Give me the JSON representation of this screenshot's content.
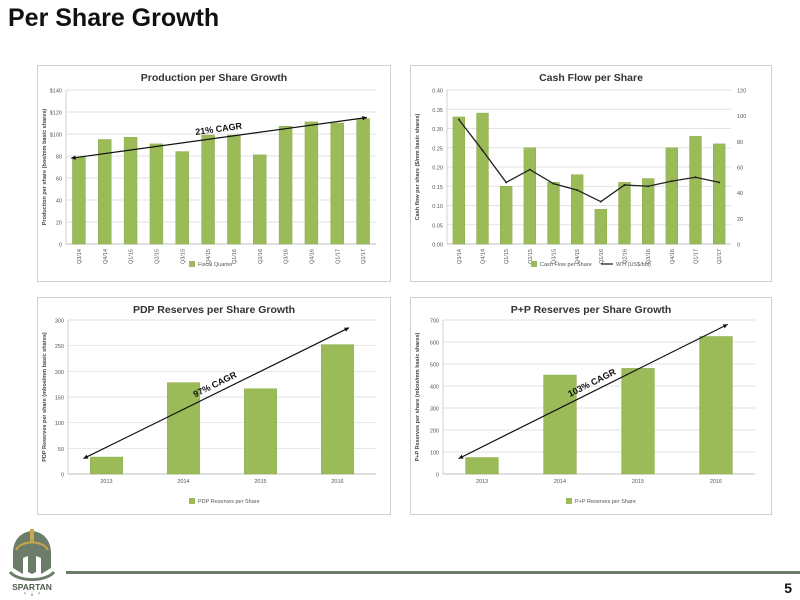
{
  "page": {
    "title": "Per Share Growth",
    "page_number": "5",
    "logo_text": "SPARTAN"
  },
  "colors": {
    "bar": "#9bbb59",
    "bar_stroke": "#8aab4b",
    "line": "#222222",
    "grid": "#d9d9d9",
    "axis": "#bfbfbf",
    "text": "#555555"
  },
  "chart_data": [
    {
      "id": "prod",
      "type": "bar",
      "title": "Production per Share Growth",
      "ylabel": "Production per share (boe/mm basic shares)",
      "xlabel": "",
      "categories": [
        "Q3/14",
        "Q4/14",
        "Q1/15",
        "Q2/15",
        "Q3/15",
        "Q4/15",
        "Q1/16",
        "Q2/16",
        "Q3/16",
        "Q4/16",
        "Q1/17",
        "Q2/17"
      ],
      "series": [
        {
          "name": "Fiscal Quarter",
          "values": [
            79,
            95,
            97,
            91,
            84,
            99,
            99,
            81,
            107,
            111,
            110,
            114
          ]
        }
      ],
      "ylim": [
        0,
        140
      ],
      "yticks": [
        0,
        20,
        40,
        60,
        80,
        100,
        120,
        140
      ],
      "ytick_labels": [
        "0",
        "20",
        "40",
        "60",
        "80",
        "$100",
        "$120",
        "$140"
      ],
      "grid": true,
      "legend": "bottom",
      "annotation": {
        "text": "21% CAGR",
        "from": [
          0,
          78
        ],
        "to": [
          11,
          115
        ]
      }
    },
    {
      "id": "cash",
      "type": "bar",
      "title": "Cash Flow per Share",
      "ylabel": "Cash flow per share ($/mm basic shares)",
      "xlabel": "",
      "categories": [
        "Q3/14",
        "Q4/14",
        "Q1/15",
        "Q2/15",
        "Q3/15",
        "Q4/15",
        "Q1/16",
        "Q2/16",
        "Q3/16",
        "Q4/16",
        "Q1/17",
        "Q2/17"
      ],
      "series": [
        {
          "name": "Cash Flow per Share",
          "values": [
            0.33,
            0.34,
            0.15,
            0.25,
            0.16,
            0.18,
            0.09,
            0.16,
            0.17,
            0.25,
            0.28,
            0.26
          ],
          "axis": "left"
        },
        {
          "name": "WTI (US$/bbl)",
          "values": [
            97,
            73,
            48,
            58,
            47,
            42,
            33,
            46,
            45,
            49,
            52,
            48
          ],
          "axis": "right",
          "type": "line"
        }
      ],
      "ylim": [
        0,
        0.4
      ],
      "yticks": [
        0,
        0.05,
        0.1,
        0.15,
        0.2,
        0.25,
        0.3,
        0.35,
        0.4
      ],
      "ytick_labels": [
        "0.00",
        "0.05",
        "0.10",
        "0.15",
        "0.20",
        "0.25",
        "0.30",
        "0.35",
        "0.40"
      ],
      "y2lim": [
        0,
        120
      ],
      "y2ticks": [
        0,
        20,
        40,
        60,
        80,
        100,
        120
      ],
      "y2tick_labels": [
        "0",
        "20",
        "40",
        "60",
        "80",
        "100",
        "120"
      ],
      "grid": true,
      "legend": "bottom"
    },
    {
      "id": "pdp",
      "type": "bar",
      "title": "PDP Reserves per Share Growth",
      "ylabel": "PDP Reserves per share (mboe/mm basic shares)",
      "xlabel": "",
      "categories": [
        "2013",
        "2014",
        "2015",
        "2016"
      ],
      "series": [
        {
          "name": "PDP Reserves per Share",
          "values": [
            33,
            178,
            166,
            252
          ]
        }
      ],
      "ylim": [
        0,
        300
      ],
      "yticks": [
        0,
        50,
        100,
        150,
        200,
        250,
        300
      ],
      "ytick_labels": [
        "0",
        "50",
        "100",
        "150",
        "200",
        "250",
        "300"
      ],
      "grid": true,
      "legend": "bottom",
      "annotation": {
        "text": "97% CAGR",
        "from": [
          0,
          30
        ],
        "to": [
          3,
          285
        ]
      }
    },
    {
      "id": "pp",
      "type": "bar",
      "title": "P+P Reserves per Share Growth",
      "ylabel": "P+P Reserves per share (mboe/mm basic shares)",
      "xlabel": "",
      "categories": [
        "2013",
        "2014",
        "2015",
        "2016"
      ],
      "series": [
        {
          "name": "P+P Reserves per Share",
          "values": [
            75,
            450,
            480,
            625
          ]
        }
      ],
      "ylim": [
        0,
        700
      ],
      "yticks": [
        0,
        100,
        200,
        300,
        400,
        500,
        600,
        700
      ],
      "ytick_labels": [
        "0",
        "100",
        "200",
        "300",
        "400",
        "500",
        "600",
        "700"
      ],
      "grid": true,
      "legend": "bottom",
      "annotation": {
        "text": "103% CAGR",
        "from": [
          0,
          70
        ],
        "to": [
          3,
          680
        ]
      }
    }
  ]
}
